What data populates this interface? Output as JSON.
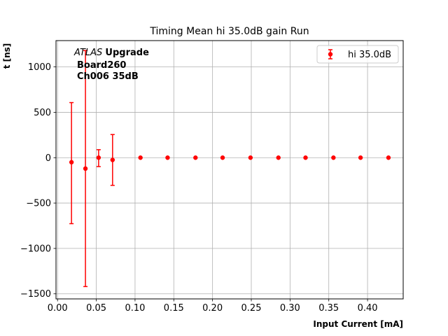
{
  "chart_data": {
    "type": "scatter",
    "title": "Timing Mean hi 35.0dB gain Run",
    "xlabel": "Input Current [mA]",
    "ylabel": "t [ns]",
    "xlim": [
      -0.002,
      0.446
    ],
    "ylim": [
      -1556,
      1290
    ],
    "xticks": [
      0.0,
      0.05,
      0.1,
      0.15,
      0.2,
      0.25,
      0.3,
      0.35,
      0.4
    ],
    "xtick_labels": [
      "0.00",
      "0.05",
      "0.10",
      "0.15",
      "0.20",
      "0.25",
      "0.30",
      "0.35",
      "0.40"
    ],
    "yticks": [
      -1500,
      -1000,
      -500,
      0,
      500,
      1000
    ],
    "ytick_labels": [
      "−1500",
      "−1000",
      "−500",
      "0",
      "500",
      "1000"
    ],
    "grid": true,
    "legend_position": "top-right",
    "annotation": {
      "atlas": "ATLAS",
      "upgrade": "Upgrade",
      "line2": "Board260",
      "line3": "Ch006 35dB"
    },
    "series": [
      {
        "name": "hi 35.0dB",
        "color": "#ff0000",
        "points": [
          {
            "x": 0.018,
            "y": -50,
            "yerr_low": -727,
            "yerr_high": 607
          },
          {
            "x": 0.036,
            "y": -120,
            "yerr_low": -1420,
            "yerr_high": 1180
          },
          {
            "x": 0.053,
            "y": 0,
            "yerr_low": -98,
            "yerr_high": 88
          },
          {
            "x": 0.071,
            "y": -25,
            "yerr_low": -305,
            "yerr_high": 255
          },
          {
            "x": 0.107,
            "y": 0
          },
          {
            "x": 0.142,
            "y": 0
          },
          {
            "x": 0.178,
            "y": 0
          },
          {
            "x": 0.213,
            "y": 0
          },
          {
            "x": 0.249,
            "y": 0
          },
          {
            "x": 0.285,
            "y": 0
          },
          {
            "x": 0.32,
            "y": 0
          },
          {
            "x": 0.356,
            "y": 0
          },
          {
            "x": 0.391,
            "y": 0
          },
          {
            "x": 0.427,
            "y": 0
          }
        ]
      }
    ]
  }
}
